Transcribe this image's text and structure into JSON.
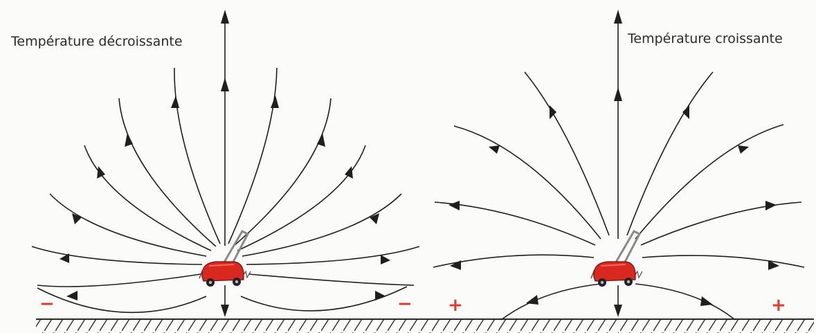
{
  "labels": {
    "left_title": "Température décroissante",
    "right_title": "Température croissante"
  },
  "signs": {
    "minus": "−",
    "plus": "+"
  },
  "colors": {
    "field_line": "#1f1f1f",
    "sign": "#e53a2a",
    "mower_body": "#d8281f",
    "ground": "#2a2a2a"
  }
}
